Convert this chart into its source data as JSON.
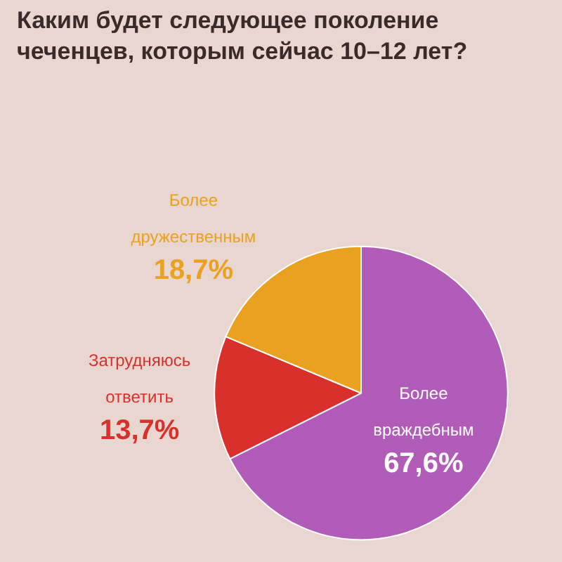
{
  "chart_data": {
    "type": "pie",
    "title": "Каким будет следующее поколение чеченцев, которым сейчас 10–12 лет?",
    "categories": [
      "Более враждебным",
      "Затрудняюсь ответить",
      "Более дружественным"
    ],
    "values": [
      67.6,
      13.7,
      18.7
    ],
    "value_labels": [
      "67,6%",
      "13,7%",
      "18,7%"
    ],
    "colors": [
      "#b15cb9",
      "#d8312c",
      "#e9a11f"
    ],
    "legend": false
  }
}
